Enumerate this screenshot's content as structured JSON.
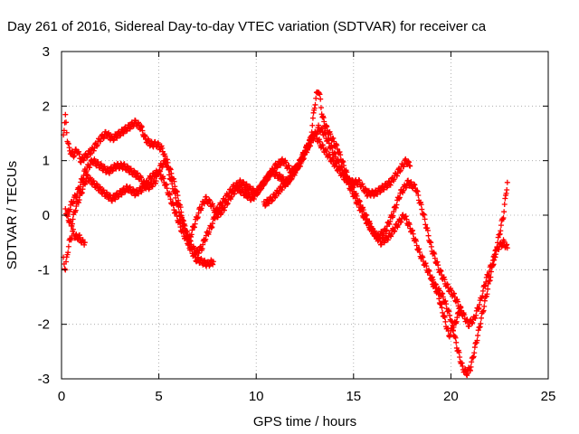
{
  "chart_data": {
    "type": "scatter",
    "title": "Day 261 of 2016, Sidereal Day-to-day VTEC variation (SDTVAR) for receiver ca",
    "xlabel": "GPS time / hours",
    "ylabel": "SDTVAR / TECUs",
    "xlim": [
      0,
      25
    ],
    "ylim": [
      -3,
      3
    ],
    "x_ticks": [
      "0",
      "5",
      "10",
      "15",
      "20",
      "25"
    ],
    "y_ticks": [
      "-3",
      "-2",
      "-1",
      "0",
      "1",
      "2",
      "3"
    ],
    "grid": true,
    "marker": "plus",
    "color": "#ff0000",
    "series": [
      {
        "x": [
          0.1,
          0.2,
          0.3,
          0.4,
          0.6,
          0.8,
          1.0,
          1.3,
          1.6,
          2.0,
          2.3,
          2.6,
          3.0,
          3.4,
          3.8,
          4.1,
          4.3,
          4.6,
          4.9,
          5.2,
          5.5,
          5.8,
          6.1,
          6.4,
          6.6,
          6.9,
          7.2,
          7.5,
          7.8
        ],
        "y": [
          1.5,
          1.8,
          1.4,
          1.2,
          1.1,
          1.2,
          1.0,
          1.1,
          1.2,
          1.4,
          1.5,
          1.4,
          1.5,
          1.6,
          1.7,
          1.6,
          1.4,
          1.3,
          1.3,
          1.2,
          0.8,
          0.4,
          0.0,
          -0.3,
          -0.6,
          -0.8,
          -0.85,
          -0.9,
          -0.85
        ]
      },
      {
        "x": [
          0.2,
          0.3,
          0.5,
          0.8,
          1.2,
          1.6,
          2.0,
          2.4,
          2.8,
          3.2,
          3.6,
          4.0,
          4.4,
          4.8,
          5.1,
          5.4,
          5.7,
          6.0,
          6.3,
          6.6,
          6.9,
          7.2,
          7.4,
          7.7,
          8.0,
          8.4,
          8.8,
          9.2,
          9.6,
          10.0,
          10.4,
          10.8,
          11.2,
          11.6,
          12.0,
          12.4,
          12.7,
          13.0,
          13.3,
          13.7,
          14.1,
          14.5,
          14.9,
          15.3,
          15.7,
          16.1,
          16.5,
          16.9,
          17.3,
          17.7,
          17.9
        ],
        "y": [
          0.1,
          0.0,
          0.2,
          0.4,
          0.8,
          1.0,
          0.9,
          0.8,
          0.9,
          0.9,
          0.8,
          0.7,
          0.5,
          0.6,
          0.9,
          1.0,
          0.7,
          0.3,
          -0.2,
          -0.5,
          -0.7,
          -0.6,
          -0.4,
          -0.2,
          0.1,
          0.3,
          0.5,
          0.6,
          0.5,
          0.4,
          0.6,
          0.8,
          0.7,
          0.6,
          0.8,
          1.1,
          1.3,
          1.5,
          1.3,
          1.1,
          0.9,
          0.7,
          0.6,
          0.6,
          0.4,
          0.4,
          0.5,
          0.6,
          0.8,
          1.0,
          0.9
        ]
      },
      {
        "x": [
          0.3,
          0.5,
          0.7,
          1.0,
          1.3,
          1.6,
          1.9,
          2.2,
          2.6,
          3.0,
          3.4,
          3.8,
          4.2,
          4.6,
          5.0,
          5.3,
          5.6,
          5.9,
          6.2,
          6.5,
          6.8,
          7.1,
          7.4,
          7.7,
          8.0,
          8.3,
          8.6,
          9.0,
          9.4,
          9.8,
          10.2,
          10.6,
          11.0,
          11.4,
          11.8,
          12.2,
          12.6,
          12.9,
          13.2,
          13.5,
          13.9,
          14.3,
          14.7,
          15.1,
          15.5,
          15.8,
          16.2,
          16.6,
          17.0,
          17.4,
          17.8,
          18.2,
          18.6,
          19.0,
          19.4,
          19.8,
          20.2,
          20.6,
          20.9,
          21.2,
          21.5,
          21.8,
          22.1,
          22.4,
          22.7,
          22.9
        ],
        "y": [
          0.0,
          -0.2,
          0.1,
          0.4,
          0.7,
          0.6,
          0.5,
          0.4,
          0.3,
          0.4,
          0.5,
          0.4,
          0.5,
          0.7,
          0.8,
          0.6,
          0.3,
          0.0,
          -0.3,
          -0.5,
          -0.2,
          0.1,
          0.3,
          0.2,
          0.0,
          0.1,
          0.3,
          0.5,
          0.4,
          0.3,
          0.5,
          0.7,
          0.9,
          1.0,
          0.8,
          0.9,
          1.2,
          1.4,
          1.6,
          1.5,
          1.2,
          0.9,
          0.6,
          0.3,
          0.0,
          -0.2,
          -0.4,
          -0.3,
          0.0,
          0.4,
          0.6,
          0.5,
          0.0,
          -0.6,
          -1.0,
          -1.3,
          -1.5,
          -1.8,
          -2.0,
          -1.9,
          -1.6,
          -1.2,
          -0.9,
          -0.6,
          -0.5,
          -0.6
        ]
      },
      {
        "x": [
          0.1,
          0.2,
          0.3,
          0.4,
          0.5,
          0.6,
          0.7,
          0.9,
          1.1,
          1.2
        ],
        "y": [
          -0.8,
          -1.0,
          -0.7,
          -0.5,
          -0.4,
          -0.3,
          -0.4,
          -0.4,
          -0.5,
          -0.5
        ]
      },
      {
        "x": [
          10.4,
          10.8,
          11.3,
          11.8,
          12.3,
          12.8,
          13.0,
          13.1,
          13.2,
          13.3,
          13.4,
          13.6,
          13.9,
          14.2,
          14.5,
          14.8,
          15.2,
          15.6,
          16.0,
          16.4,
          16.8,
          17.2,
          17.6,
          18.0,
          18.4,
          18.8,
          19.2,
          19.6,
          20.0,
          20.3,
          20.6,
          20.8,
          21.0,
          21.2,
          21.5,
          21.8,
          22.1,
          22.4,
          22.7,
          22.9
        ],
        "y": [
          0.2,
          0.3,
          0.5,
          0.7,
          1.0,
          1.4,
          2.0,
          2.2,
          2.3,
          2.1,
          1.8,
          1.6,
          1.4,
          1.2,
          0.9,
          0.6,
          0.3,
          0.0,
          -0.3,
          -0.5,
          -0.4,
          -0.2,
          0.0,
          -0.3,
          -0.7,
          -1.0,
          -1.3,
          -1.5,
          -1.9,
          -2.4,
          -2.8,
          -2.9,
          -2.8,
          -2.5,
          -2.0,
          -1.5,
          -1.0,
          -0.5,
          0.0,
          0.6
        ]
      },
      {
        "x": [
          19.0,
          19.3,
          19.6,
          19.9,
          20.2,
          20.5
        ],
        "y": [
          -1.2,
          -1.4,
          -1.8,
          -2.2,
          -2.0,
          -1.7
        ]
      }
    ]
  }
}
